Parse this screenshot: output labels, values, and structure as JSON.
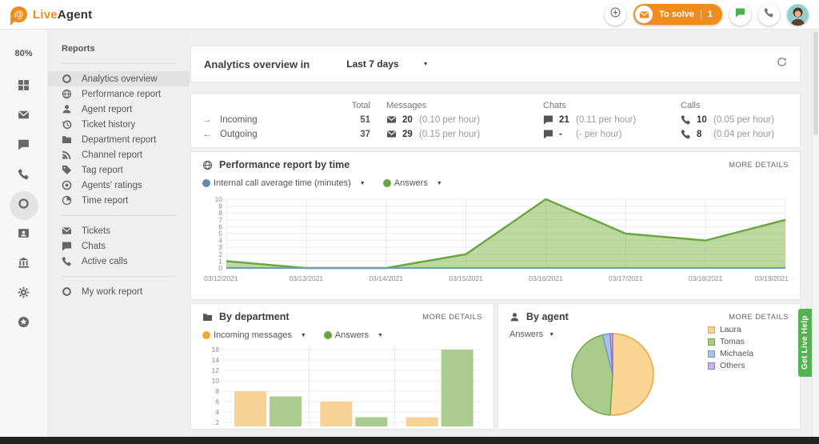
{
  "topbar": {
    "brand": {
      "symbol": "@",
      "live": "Live",
      "agent": "Agent"
    },
    "to_solve": {
      "label": "To solve",
      "count": "1"
    },
    "accent_orange": "#ef8c1e",
    "chat_green": "#4caf50"
  },
  "rail": {
    "percent": "80%",
    "items": [
      {
        "icon": "grid"
      },
      {
        "icon": "envelope"
      },
      {
        "icon": "chat"
      },
      {
        "icon": "phone"
      },
      {
        "icon": "circle-o",
        "selected": true
      },
      {
        "icon": "card"
      },
      {
        "icon": "bank"
      },
      {
        "icon": "gear"
      },
      {
        "icon": "star-circle"
      }
    ]
  },
  "sidebar": {
    "title": "Reports",
    "groups": [
      {
        "items": [
          {
            "icon": "circle-o",
            "label": "Analytics overview",
            "selected": true
          },
          {
            "icon": "globe",
            "label": "Performance report"
          },
          {
            "icon": "person",
            "label": "Agent report"
          },
          {
            "icon": "history",
            "label": "Ticket history"
          },
          {
            "icon": "folder",
            "label": "Department report"
          },
          {
            "icon": "rss",
            "label": "Channel report"
          },
          {
            "icon": "tag",
            "label": "Tag report"
          },
          {
            "icon": "target",
            "label": "Agents' ratings"
          },
          {
            "icon": "pie-clock",
            "label": "Time report"
          }
        ]
      },
      {
        "items": [
          {
            "icon": "envelope",
            "label": "Tickets"
          },
          {
            "icon": "chat",
            "label": "Chats"
          },
          {
            "icon": "phone",
            "label": "Active calls"
          }
        ]
      },
      {
        "items": [
          {
            "icon": "circle-o",
            "label": "My work report"
          }
        ]
      }
    ]
  },
  "header": {
    "title": "Analytics overview in",
    "range": "Last 7 days"
  },
  "stats": {
    "columns": [
      "Total",
      "Messages",
      "Chats",
      "Calls"
    ],
    "rows": [
      {
        "dir": "→",
        "label": "Incoming",
        "total": "51",
        "messages": {
          "value": "20",
          "rate": "(0.10 per hour)"
        },
        "chats": {
          "value": "21",
          "rate": "(0.11 per hour)"
        },
        "calls": {
          "value": "10",
          "rate": "(0.05 per hour)"
        }
      },
      {
        "dir": "←",
        "label": "Outgoing",
        "total": "37",
        "messages": {
          "value": "29",
          "rate": "(0.15 per hour)"
        },
        "chats": {
          "value": "-",
          "rate": "(- per hour)"
        },
        "calls": {
          "value": "8",
          "rate": "(0.04 per hour)"
        }
      }
    ]
  },
  "performance": {
    "title": "Performance report by time",
    "more": "MORE DETAILS",
    "legend": [
      {
        "label": "Internal call average time (minutes)",
        "color": "#5b8cae"
      },
      {
        "label": "Answers",
        "color": "#6aa63f"
      }
    ]
  },
  "by_department": {
    "title": "By department",
    "more": "MORE DETAILS",
    "legend": [
      {
        "label": "Incoming messages",
        "color": "#f0a92e"
      },
      {
        "label": "Answers",
        "color": "#6aa63f"
      }
    ]
  },
  "by_agent": {
    "title": "By agent",
    "more": "MORE DETAILS",
    "dropdown": "Answers"
  },
  "live_help": "Get Live Help",
  "chart_data": [
    {
      "id": "performance-by-time",
      "type": "area",
      "x": [
        "03/12/2021",
        "03/13/2021",
        "03/14/2021",
        "03/15/2021",
        "03/16/2021",
        "03/17/2021",
        "03/18/2021",
        "03/19/2021"
      ],
      "series": [
        {
          "name": "Internal call average time (minutes)",
          "color": "#6d9eba",
          "values": [
            0,
            0,
            0,
            0,
            0,
            0,
            0,
            0
          ]
        },
        {
          "name": "Answers",
          "color": "#6aa63f",
          "fill": "rgba(124,179,66,0.5)",
          "values": [
            1,
            0,
            0,
            2,
            10,
            5,
            4,
            7
          ]
        }
      ],
      "ylim": [
        0,
        10
      ],
      "ytick_step": 1,
      "grid": true,
      "legend_position": "top-left"
    },
    {
      "id": "by-department",
      "type": "bar",
      "categories": [
        "",
        "",
        ""
      ],
      "series": [
        {
          "name": "Incoming messages",
          "color": "#f7d296",
          "values": [
            8,
            6,
            3
          ]
        },
        {
          "name": "Answers",
          "color": "#abcc8e",
          "values": [
            7,
            3,
            16
          ]
        }
      ],
      "ylim": [
        0,
        16
      ],
      "yticks": [
        2,
        4,
        6,
        8,
        10,
        12,
        14,
        16
      ],
      "grid": true,
      "note": "x-axis category labels cut off at bottom of viewport"
    },
    {
      "id": "by-agent",
      "type": "pie",
      "labels": [
        "Laura",
        "Tomas",
        "Michaela",
        "Others"
      ],
      "values_percent": [
        51,
        45,
        3,
        1
      ],
      "stroke_colors": [
        "#f2a33c",
        "#72a844",
        "#6f9bd1",
        "#9575cd"
      ],
      "fill_colors": [
        "#f9d492",
        "#aacb8c",
        "#a8c4e5",
        "#c9b6e4"
      ],
      "legend_position": "right"
    }
  ]
}
